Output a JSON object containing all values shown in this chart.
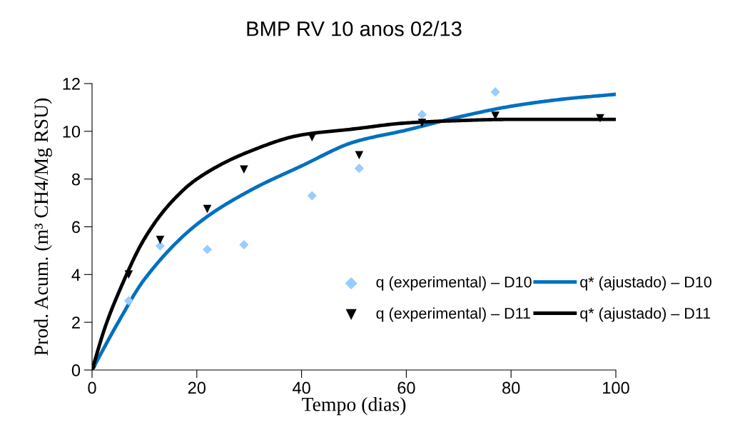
{
  "chart_data": {
    "type": "line",
    "title": "BMP RV 10 anos 02/13",
    "xlabel": "Tempo (dias)",
    "ylabel": "Prod. Acum. (m³ CH4/Mg RSU)",
    "xlim": [
      0,
      100
    ],
    "xticks": [
      0,
      20,
      40,
      60,
      80,
      100
    ],
    "ylim": [
      0,
      12
    ],
    "yticks": [
      0,
      2,
      4,
      6,
      8,
      10,
      12
    ],
    "grid": false,
    "legend": "bottom right",
    "series": [
      {
        "name": "q (experimental) – D10",
        "type": "scatter",
        "marker": "diamond",
        "color": "#99ccff",
        "x": [
          0,
          7,
          13,
          22,
          29,
          42,
          51,
          63,
          77
        ],
        "values": [
          0,
          2.9,
          5.2,
          5.05,
          5.25,
          7.3,
          8.45,
          10.7,
          11.65
        ]
      },
      {
        "name": "q* (ajustado) – D10",
        "marker": "none",
        "color": "#0070c0",
        "x": [
          0,
          5,
          10,
          20,
          30,
          40,
          50,
          60,
          70,
          80,
          90,
          100
        ],
        "values": [
          0,
          2.0,
          3.8,
          6.1,
          7.5,
          8.55,
          9.55,
          10.05,
          10.6,
          11.05,
          11.35,
          11.55
        ]
      },
      {
        "name": "q (experimental) – D11",
        "type": "scatter",
        "marker": "triangle",
        "color": "#000000",
        "x": [
          0,
          7,
          13,
          22,
          29,
          42,
          51,
          63,
          77,
          97
        ],
        "values": [
          0,
          4.0,
          5.45,
          6.75,
          8.4,
          9.75,
          9.0,
          10.35,
          10.65,
          10.55
        ]
      },
      {
        "name": "q* (ajustado) – D11",
        "marker": "none",
        "color": "#000000",
        "x": [
          0,
          2.5,
          5,
          10,
          15,
          20,
          30,
          40,
          50,
          60,
          70,
          80,
          100
        ],
        "values": [
          0,
          1.8,
          3.2,
          5.5,
          7.0,
          8.0,
          9.15,
          9.85,
          10.1,
          10.35,
          10.45,
          10.5,
          10.5
        ]
      }
    ]
  }
}
